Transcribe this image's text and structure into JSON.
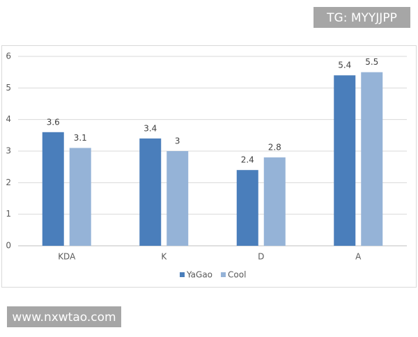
{
  "chart_data": {
    "type": "bar",
    "categories": [
      "KDA",
      "K",
      "D",
      "A"
    ],
    "series": [
      {
        "name": "YaGao",
        "color": "#4a7ebb",
        "values": [
          3.6,
          3.4,
          2.4,
          5.4
        ]
      },
      {
        "name": "Cool",
        "color": "#95b3d7",
        "values": [
          3.1,
          3,
          2.8,
          5.5
        ]
      }
    ],
    "ylim": [
      0,
      6
    ],
    "yticks": [
      0,
      1,
      2,
      3,
      4,
      5,
      6
    ],
    "grid": true,
    "legend": "bottom",
    "data_labels": true
  },
  "watermarks": [
    "TG: MYYJJPP",
    "www.nxwtao.com"
  ]
}
